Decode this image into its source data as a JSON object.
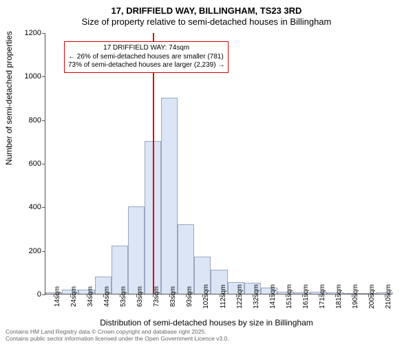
{
  "title": {
    "line1": "17, DRIFFIELD WAY, BILLINGHAM, TS23 3RD",
    "line2": "Size of property relative to semi-detached houses in Billingham"
  },
  "axes": {
    "y_label": "Number of semi-detached properties",
    "x_label": "Distribution of semi-detached houses by size in Billingham",
    "ylim": [
      0,
      1200
    ],
    "y_ticks": [
      0,
      200,
      400,
      600,
      800,
      1000,
      1200
    ],
    "x_categories": [
      "14sqm",
      "24sqm",
      "34sqm",
      "44sqm",
      "53sqm",
      "63sqm",
      "73sqm",
      "83sqm",
      "93sqm",
      "102sqm",
      "112sqm",
      "122sqm",
      "132sqm",
      "141sqm",
      "151sqm",
      "161sqm",
      "171sqm",
      "181sqm",
      "190sqm",
      "200sqm",
      "210sqm"
    ]
  },
  "chart": {
    "type": "histogram",
    "values": [
      5,
      20,
      20,
      80,
      220,
      400,
      700,
      900,
      320,
      170,
      110,
      55,
      50,
      30,
      10,
      5,
      10,
      5,
      0,
      0,
      5
    ],
    "bar_fill": "#dbe5f6",
    "bar_stroke": "#9aa7bf",
    "bar_width_ratio": 1.0,
    "background": "#ffffff",
    "axis_color": "#555555",
    "tick_fontsize": 11
  },
  "marker": {
    "line_color": "#d40000",
    "line_position_category": "73sqm",
    "box_border_color": "#d40000",
    "box_lines": [
      "17 DRIFFIELD WAY: 74sqm",
      "← 26% of semi-detached houses are smaller (781)",
      "73% of semi-detached houses are larger (2,239) →"
    ]
  },
  "footer": {
    "line1": "Contains HM Land Registry data © Crown copyright and database right 2025.",
    "line2": "Contains public sector information licensed under the Open Government Licence v3.0."
  }
}
